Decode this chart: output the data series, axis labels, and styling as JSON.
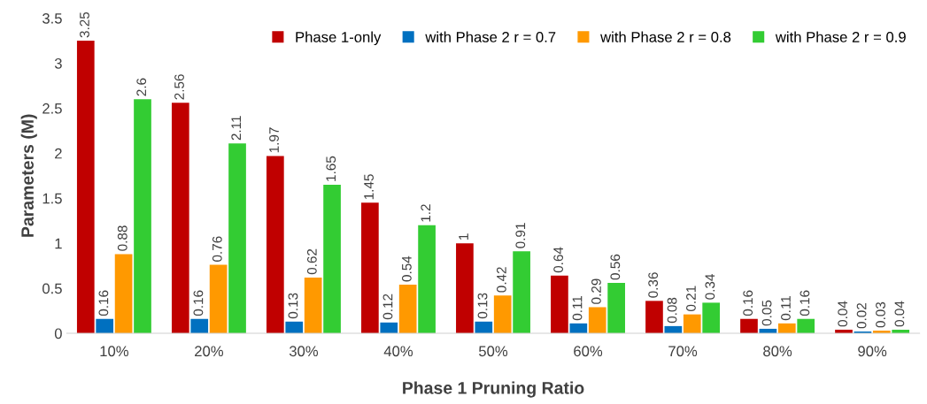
{
  "chart_data": {
    "type": "bar",
    "xlabel": "Phase 1 Pruning Ratio",
    "ylabel": "Parameters (M)",
    "categories": [
      "10%",
      "20%",
      "30%",
      "40%",
      "50%",
      "60%",
      "70%",
      "80%",
      "90%"
    ],
    "series": [
      {
        "name": "Phase 1-only",
        "color": "#c00000",
        "values": [
          3.25,
          2.56,
          1.97,
          1.45,
          1,
          0.64,
          0.36,
          0.16,
          0.04
        ]
      },
      {
        "name": "with Phase 2 r = 0.7",
        "color": "#0070c0",
        "values": [
          0.16,
          0.16,
          0.13,
          0.12,
          0.13,
          0.11,
          0.08,
          0.05,
          0.02
        ]
      },
      {
        "name": "with Phase 2 r = 0.8",
        "color": "#ff9900",
        "values": [
          0.88,
          0.76,
          0.62,
          0.54,
          0.42,
          0.29,
          0.21,
          0.11,
          0.03
        ]
      },
      {
        "name": "with Phase 2 r = 0.9",
        "color": "#33cc33",
        "values": [
          2.6,
          2.11,
          1.65,
          1.2,
          0.91,
          0.56,
          0.34,
          0.16,
          0.04
        ]
      }
    ],
    "ylim": [
      0,
      3.5
    ],
    "yticks": [
      0,
      0.5,
      1,
      1.5,
      2,
      2.5,
      3,
      3.5
    ],
    "data_labels": true,
    "grid": false,
    "legend": "top right"
  }
}
